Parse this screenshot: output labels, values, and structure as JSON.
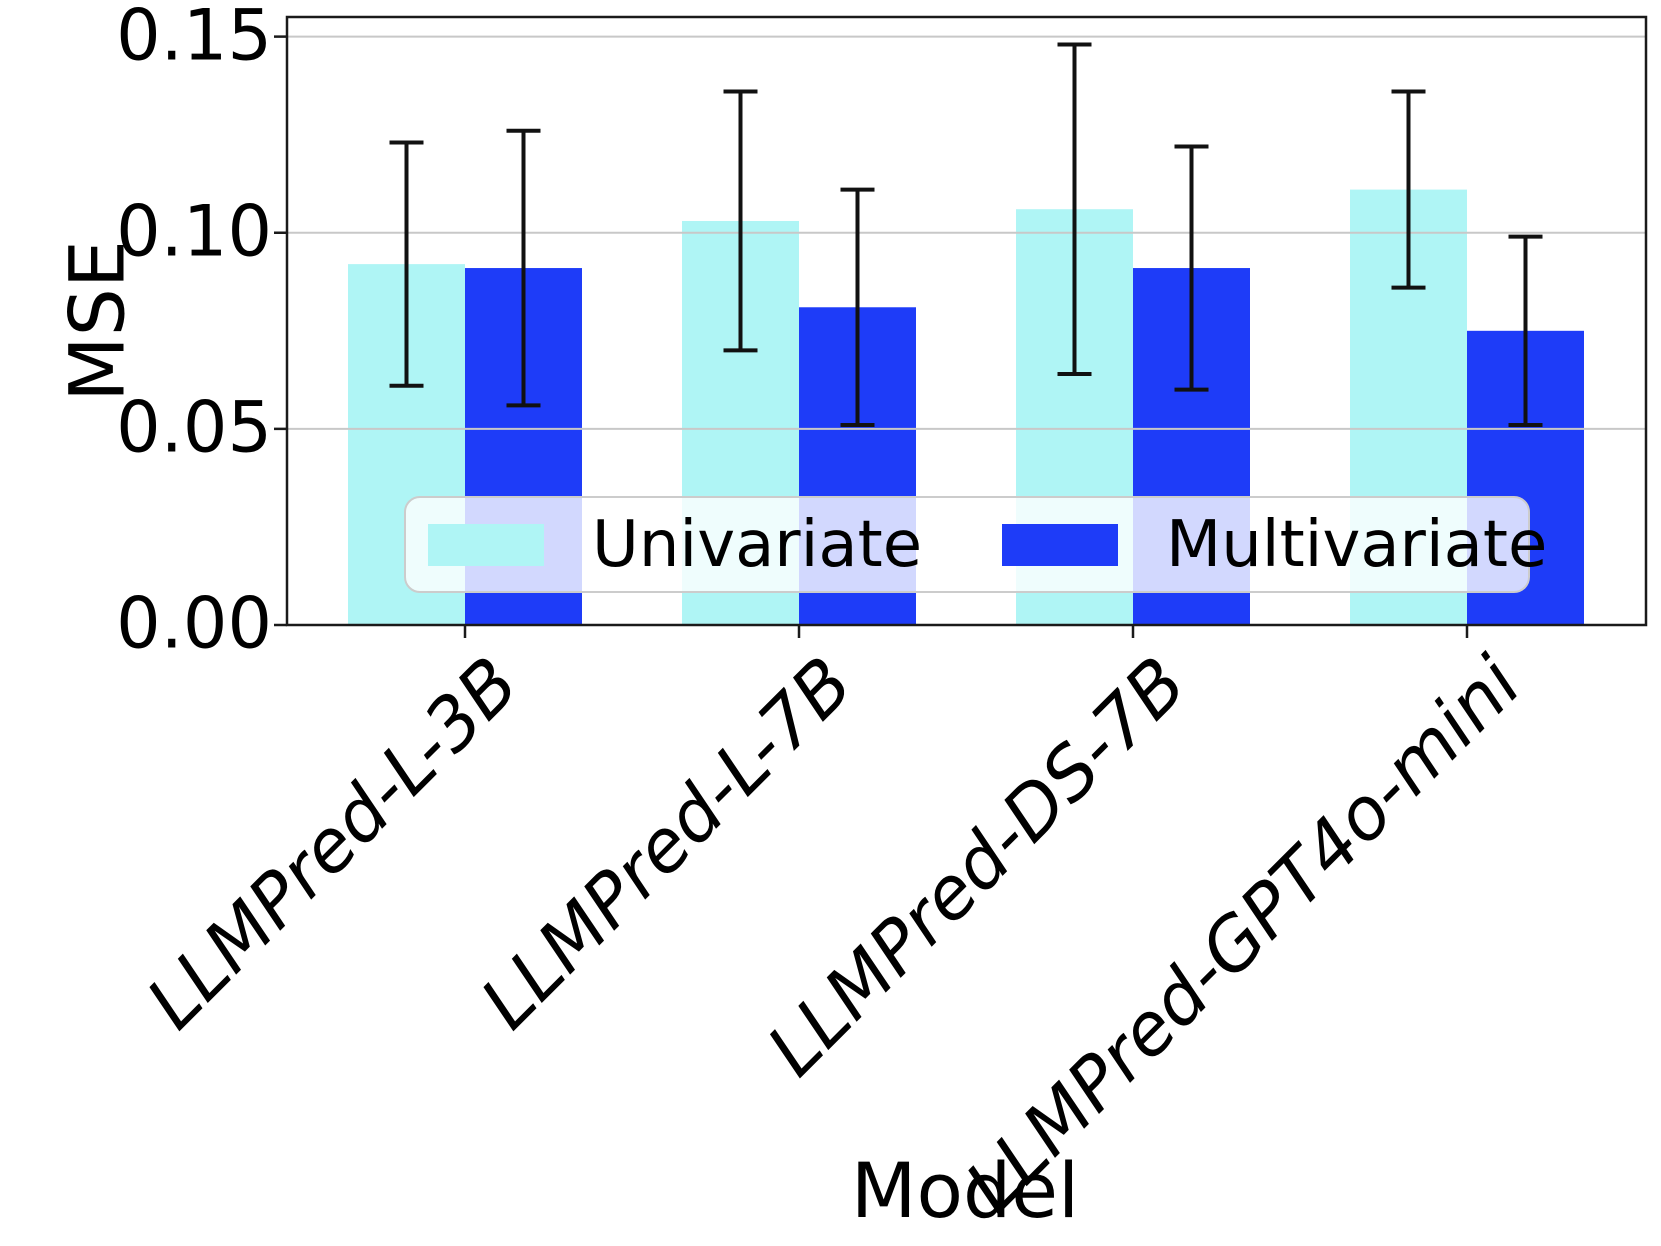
{
  "chart_data": {
    "type": "bar",
    "title": "",
    "xlabel": "Model",
    "ylabel": "MSE",
    "categories": [
      "LLMPred-L-3B",
      "LLMPred-L-7B",
      "LLMPred-DS-7B",
      "LLMPred-GPT4o-mini"
    ],
    "series": [
      {
        "name": "Univariate",
        "color": "#aff5f5",
        "values": [
          0.092,
          0.103,
          0.106,
          0.111
        ],
        "errors": [
          0.031,
          0.033,
          0.042,
          0.025
        ]
      },
      {
        "name": "Multivariate",
        "color": "#1e3cf8",
        "values": [
          0.091,
          0.081,
          0.091,
          0.075
        ],
        "errors": [
          0.035,
          0.03,
          0.031,
          0.024
        ]
      }
    ],
    "ylim": [
      0,
      0.155
    ],
    "yticks": [
      0,
      0.05,
      0.1,
      0.15
    ],
    "ytick_labels": [
      "0.00",
      "0.05",
      "0.10",
      "0.15"
    ],
    "grid": true,
    "grid_color": "#c8c8c8",
    "error_bar_color": "#111111",
    "spine_color": "#1a1a1a",
    "legend_position": "lower center",
    "xtick_style": "italic, rotated 45 degrees"
  }
}
